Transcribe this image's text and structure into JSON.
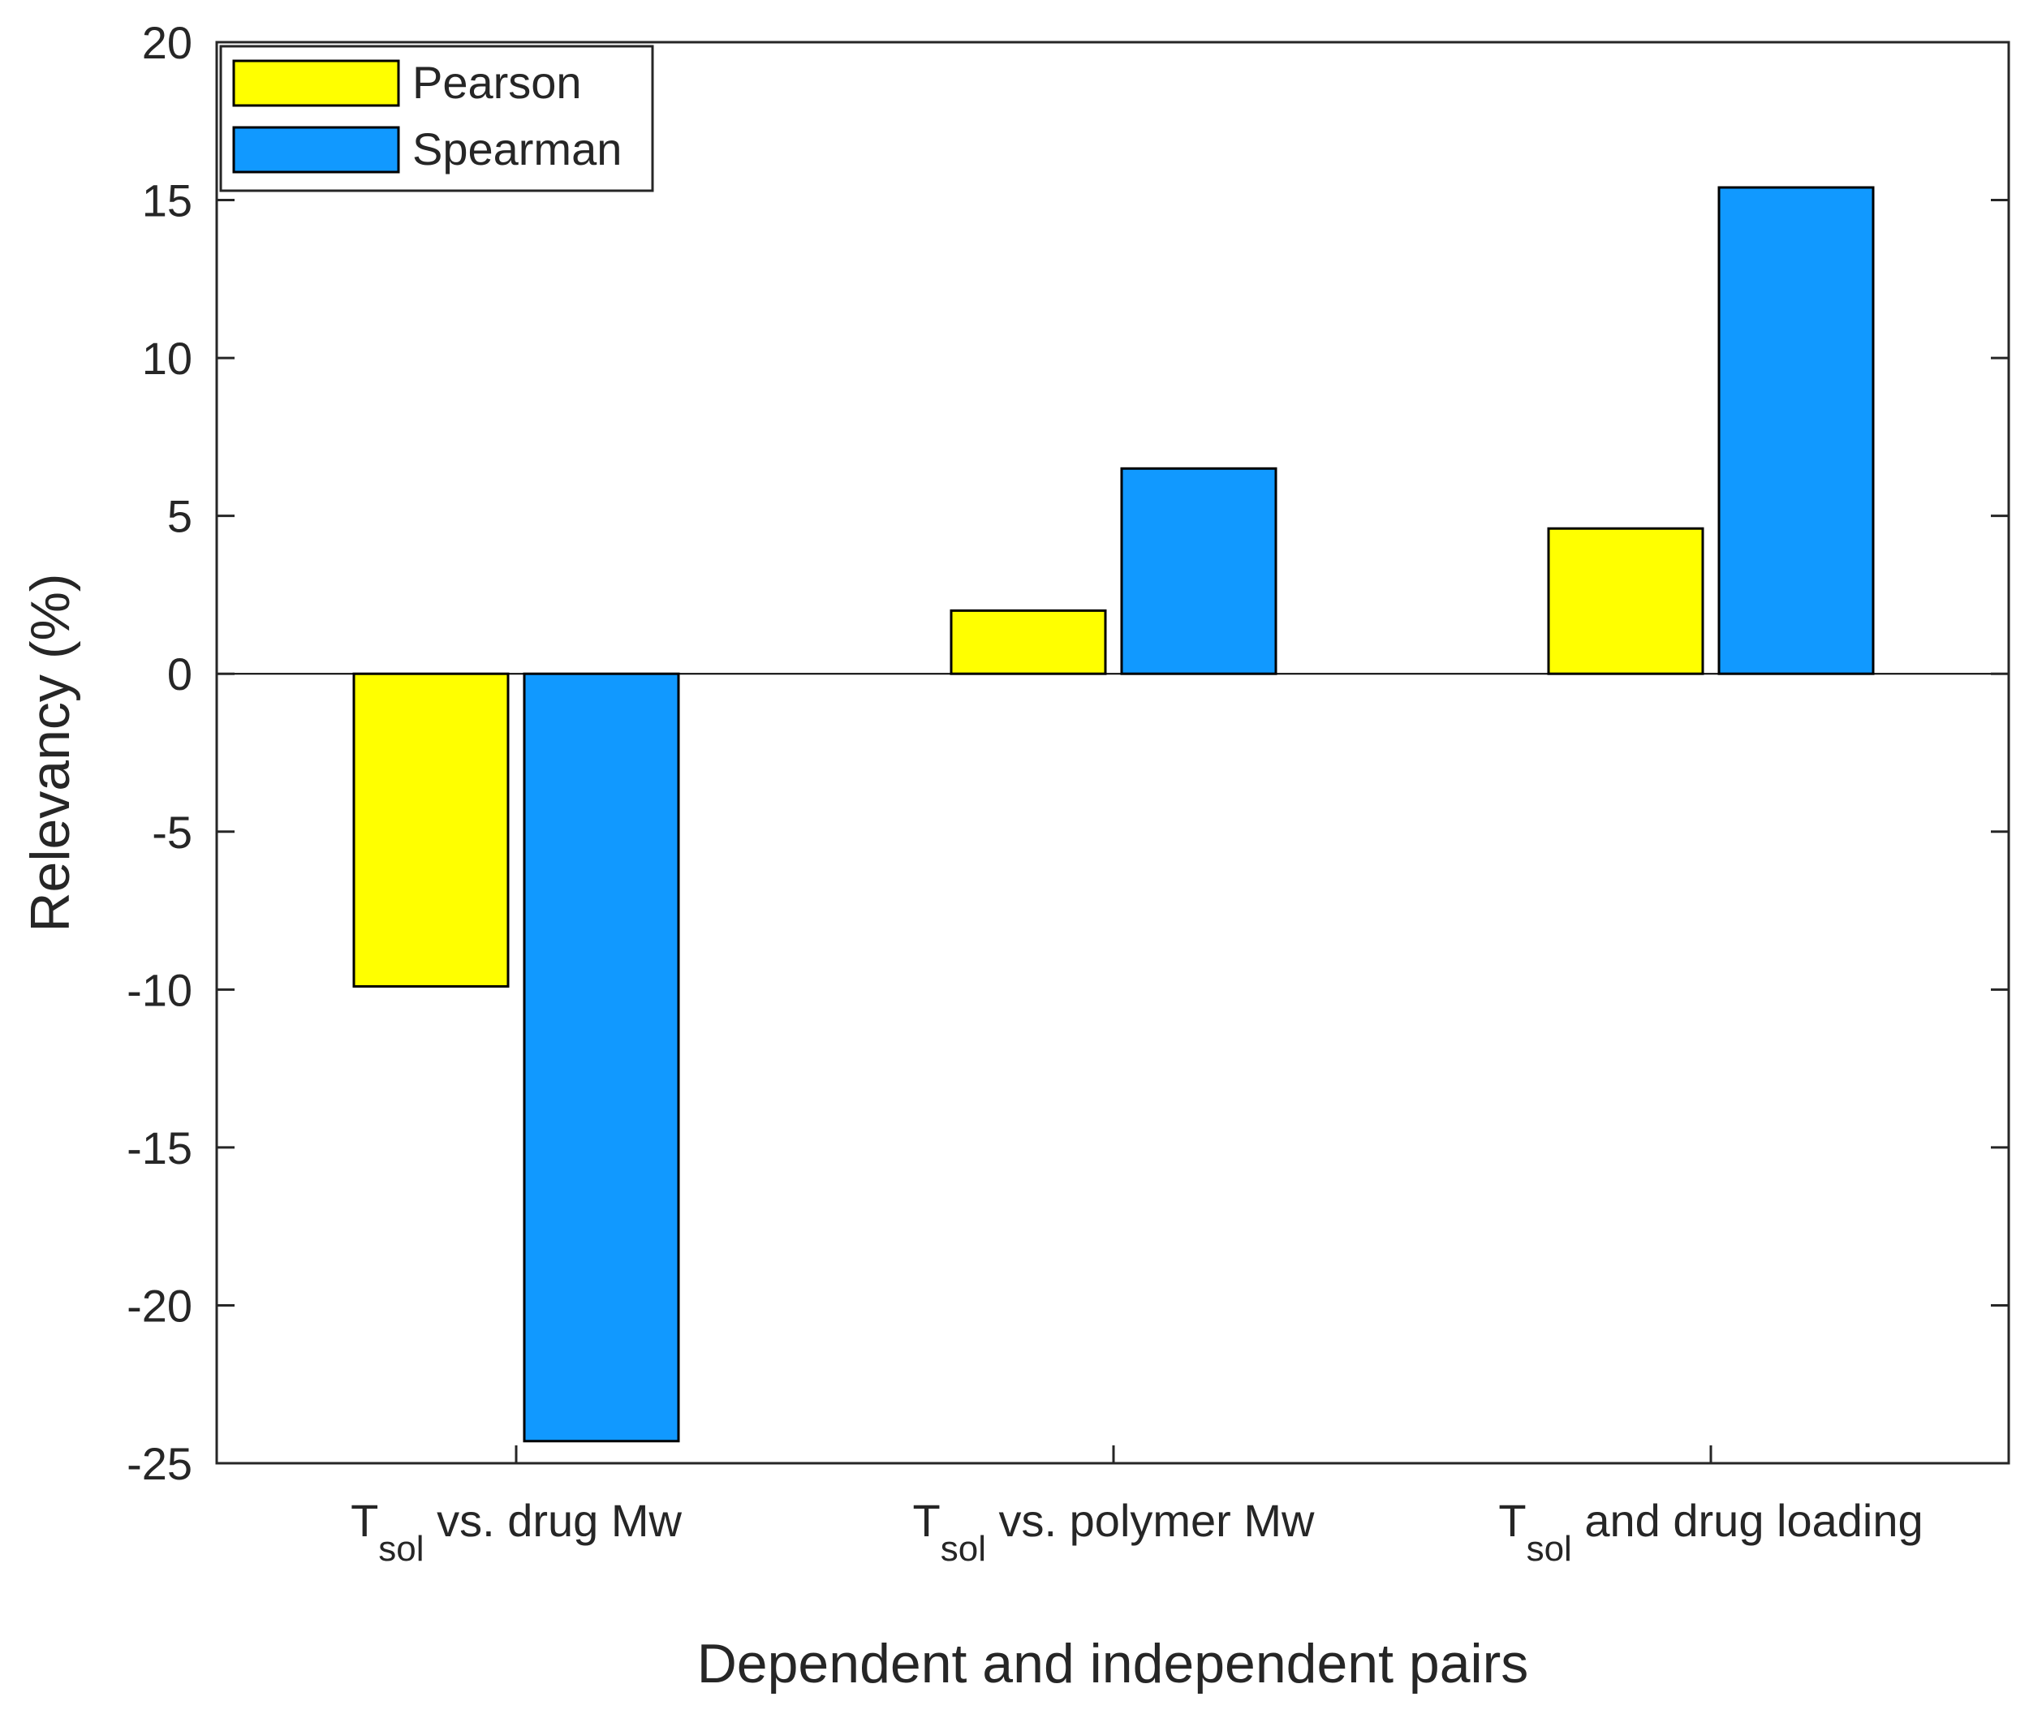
{
  "chart_data": {
    "type": "bar",
    "title": "",
    "xlabel": "Dependent and independent pairs",
    "ylabel": "Relevancy (%)",
    "ylim": [
      -25,
      20
    ],
    "yticks": [
      20,
      15,
      10,
      5,
      0,
      -5,
      -10,
      -15,
      -20,
      -25
    ],
    "ytick_labels": [
      "20",
      "15",
      "10",
      "5",
      "0",
      "-5",
      "-10",
      "-15",
      "-20",
      "-25"
    ],
    "categories": [
      {
        "main": "T",
        "sub": "sol",
        "rest": " vs. drug Mw"
      },
      {
        "main": "T",
        "sub": "sol",
        "rest": " vs. polymer Mw"
      },
      {
        "main": "T",
        "sub": "sol",
        "rest": " and drug loading"
      }
    ],
    "series": [
      {
        "name": "Pearson",
        "color": "#ffff00",
        "values": [
          -9.9,
          2.0,
          4.6
        ]
      },
      {
        "name": "Spearman",
        "color": "#1199ff",
        "values": [
          -24.3,
          6.5,
          15.4
        ]
      }
    ],
    "grid": false,
    "legend_position": "top-left"
  }
}
